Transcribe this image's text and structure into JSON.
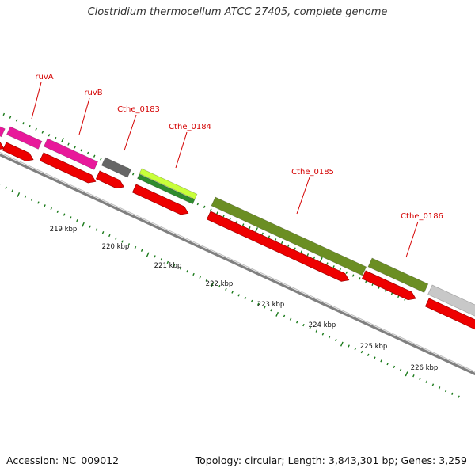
{
  "title": "Clostridium thermocellum ATCC 27405, complete genome",
  "footer": {
    "accession": "Accession: NC_009012",
    "topology": "Topology: circular; Length: 3,843,301 bp; Genes: 3,259"
  },
  "colors": {
    "label_red": "#d40000",
    "tick_green": "#1a7a1a",
    "backbone": "#808080",
    "cds_red": "#ee0000",
    "pink": "#e8189a",
    "dark_grey": "#666666",
    "lime": "#c8ff3a",
    "green": "#2e8b2e",
    "olive": "#6b8e23",
    "light_grey": "#c8c8c8"
  },
  "gene_labels": [
    "ruvA",
    "ruvB",
    "Cthe_0183",
    "Cthe_0184",
    "Cthe_0185",
    "Cthe_0186"
  ],
  "kbp_labels": [
    "219 kbp",
    "220 kbp",
    "221 kbp",
    "222 kbp",
    "223 kbp",
    "224 kbp",
    "225 kbp",
    "226 kbp"
  ]
}
